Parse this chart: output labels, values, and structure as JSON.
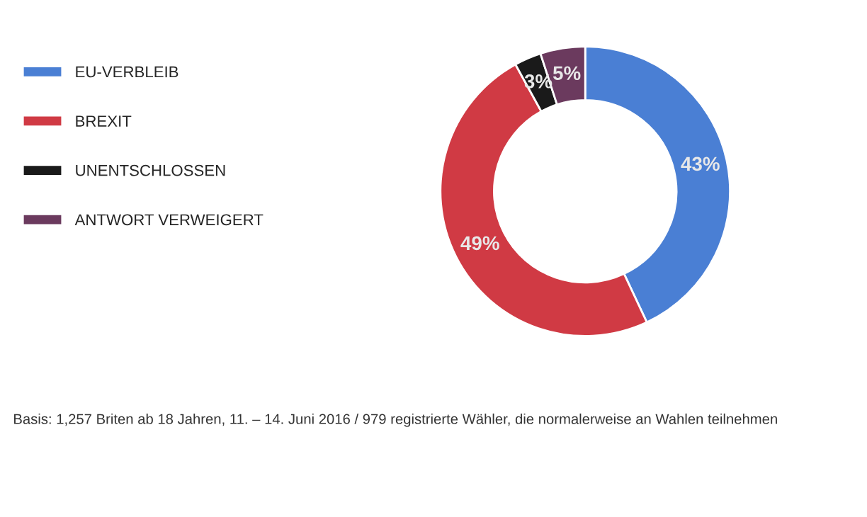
{
  "chart_data": {
    "type": "donut",
    "categories": [
      "EU-VERBLEIB",
      "BREXIT",
      "UNENTSCHLOSSEN",
      "ANTWORT VERWEIGERT"
    ],
    "values": [
      43,
      49,
      3,
      5
    ],
    "colors": [
      "#4a7fd4",
      "#d03a44",
      "#1a1a1a",
      "#6b3a5e"
    ],
    "value_labels": [
      "43%",
      "49%",
      "3%",
      "5%"
    ],
    "legend": "left",
    "annotations": [
      "Basis: 1,257 Briten ab 18 Jahren, 11. – 14. Juni 2016 / 979 registrierte Wähler, die normalerweise an Wahlen teilnehmen"
    ]
  }
}
